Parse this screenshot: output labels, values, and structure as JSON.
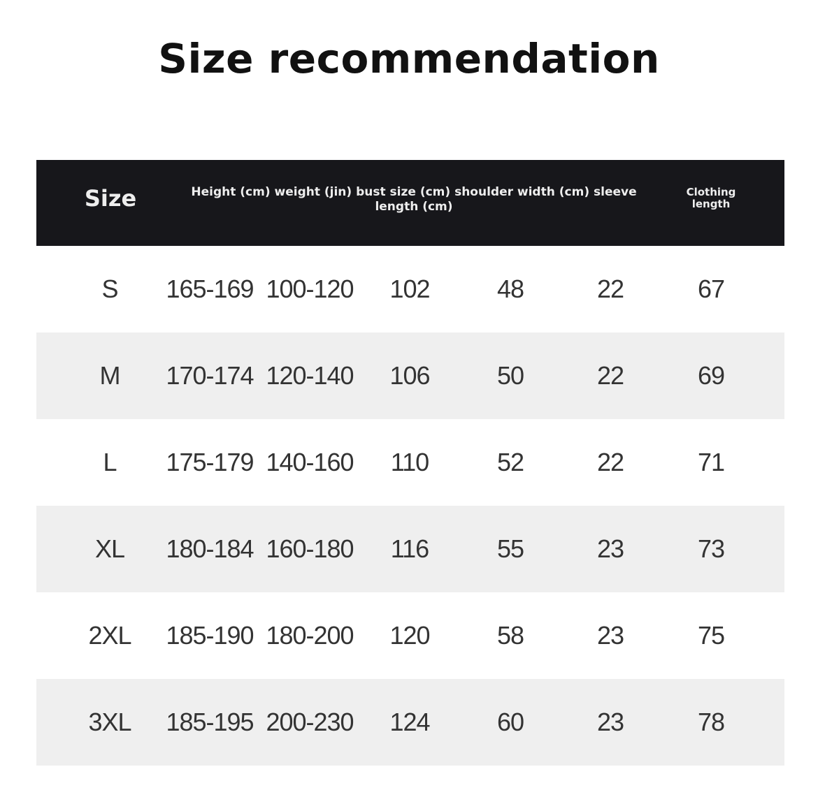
{
  "title": "Size recommendation",
  "header": {
    "size": "Size",
    "middle": "Height (cm) weight (jin) bust size (cm) shoulder width (cm) sleeve length (cm)",
    "clothing_length": "Clothing length"
  },
  "rows": [
    [
      "S",
      "165-169",
      "100-120",
      "102",
      "48",
      "22",
      "67"
    ],
    [
      "M",
      "170-174",
      "120-140",
      "106",
      "50",
      "22",
      "69"
    ],
    [
      "L",
      "175-179",
      "140-160",
      "110",
      "52",
      "22",
      "71"
    ],
    [
      "XL",
      "180-184",
      "160-180",
      "116",
      "55",
      "23",
      "73"
    ],
    [
      "2XL",
      "185-190",
      "180-200",
      "120",
      "58",
      "23",
      "75"
    ],
    [
      "3XL",
      "185-195",
      "200-230",
      "124",
      "60",
      "23",
      "78"
    ]
  ]
}
